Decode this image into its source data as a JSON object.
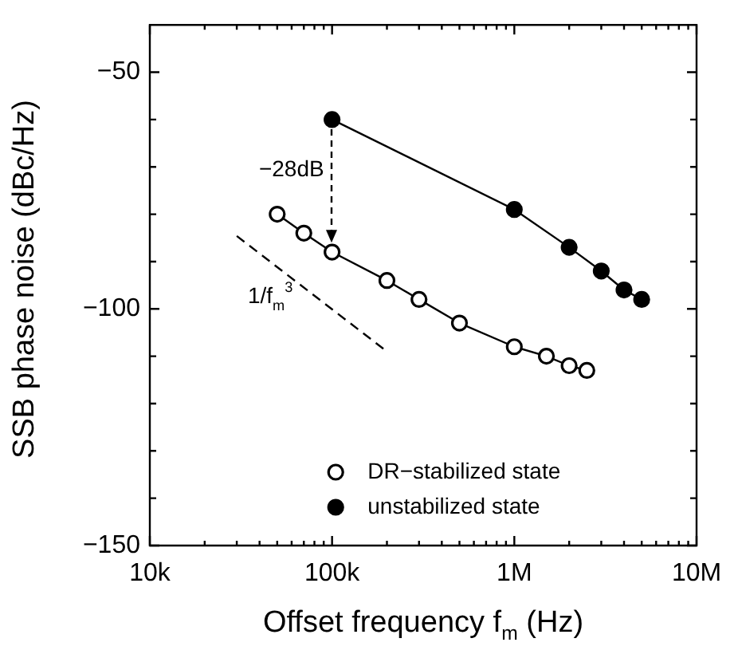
{
  "chart_data": {
    "type": "line",
    "xlabel": "Offset frequency f$_{m}$ (Hz)",
    "ylabel": "SSB phase noise (dBc/Hz)",
    "log": "x",
    "xlim": [
      10000,
      10000000
    ],
    "xticks": [
      {
        "value": 10000,
        "label": "10k"
      },
      {
        "value": 20000,
        "label": null
      },
      {
        "value": 30000,
        "label": null
      },
      {
        "value": 40000,
        "label": null
      },
      {
        "value": 50000,
        "label": null
      },
      {
        "value": 60000,
        "label": null
      },
      {
        "value": 70000,
        "label": null
      },
      {
        "value": 80000,
        "label": null
      },
      {
        "value": 90000,
        "label": null
      },
      {
        "value": 100000,
        "label": "100k"
      },
      {
        "value": 200000,
        "label": null
      },
      {
        "value": 300000,
        "label": null
      },
      {
        "value": 400000,
        "label": null
      },
      {
        "value": 500000,
        "label": null
      },
      {
        "value": 600000,
        "label": null
      },
      {
        "value": 700000,
        "label": null
      },
      {
        "value": 800000,
        "label": null
      },
      {
        "value": 900000,
        "label": null
      },
      {
        "value": 1000000,
        "label": "1M"
      },
      {
        "value": 2000000,
        "label": null
      },
      {
        "value": 3000000,
        "label": null
      },
      {
        "value": 4000000,
        "label": null
      },
      {
        "value": 5000000,
        "label": null
      },
      {
        "value": 6000000,
        "label": null
      },
      {
        "value": 7000000,
        "label": null
      },
      {
        "value": 8000000,
        "label": null
      },
      {
        "value": 9000000,
        "label": null
      },
      {
        "value": 10000000,
        "label": "10M"
      }
    ],
    "ylim": [
      -150,
      -40
    ],
    "yticks": [
      {
        "value": -150,
        "label": "−150"
      },
      {
        "value": -140,
        "label": null
      },
      {
        "value": -130,
        "label": null
      },
      {
        "value": -120,
        "label": null
      },
      {
        "value": -110,
        "label": null
      },
      {
        "value": -100,
        "label": "−100"
      },
      {
        "value": -90,
        "label": null
      },
      {
        "value": -80,
        "label": null
      },
      {
        "value": -70,
        "label": null
      },
      {
        "value": -60,
        "label": null
      },
      {
        "value": -50,
        "label": "−50"
      }
    ],
    "marker": "circle",
    "grid": false,
    "legend": "bottom",
    "series": [
      {
        "name": "DR−stabilized state",
        "color": "#000000",
        "x": [
          50000,
          70000,
          100000,
          200000,
          300000,
          500000,
          1000000,
          1500000,
          2000000,
          2500000
        ],
        "values": [
          -80,
          -84,
          -88,
          -94,
          -98,
          -103,
          -108,
          -110,
          -112,
          -113
        ]
      },
      {
        "name": "unstabilized state",
        "color": "#000000",
        "x": [
          100000,
          1000000,
          2000000,
          3000000,
          4000000,
          5000000
        ],
        "values": [
          -60,
          -79,
          -87,
          -92,
          -96,
          -98
        ]
      },
      {
        "type": "line",
        "color": "#000000",
        "marker": "none",
        "line_style": "dashed",
        "x": [
          30000,
          200000
        ],
        "values": [
          -84.6,
          -109
        ]
      }
    ],
    "annotations": [
      "−28dB",
      "1/f$_{m}$$^{3}$"
    ]
  }
}
